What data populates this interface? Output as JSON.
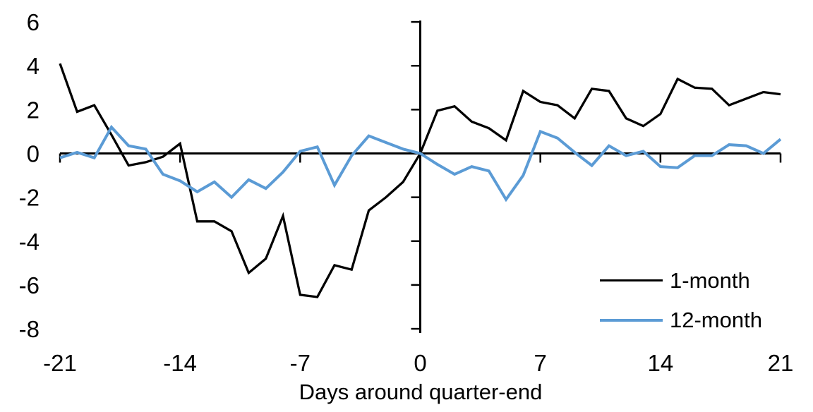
{
  "chart_data": {
    "type": "line",
    "title": "",
    "xlabel": "Days around quarter-end",
    "ylabel": "",
    "x": [
      -21,
      -20,
      -19,
      -18,
      -17,
      -16,
      -15,
      -14,
      -13,
      -12,
      -11,
      -10,
      -9,
      -8,
      -7,
      -6,
      -5,
      -4,
      -3,
      -2,
      -1,
      0,
      1,
      2,
      3,
      4,
      5,
      6,
      7,
      8,
      9,
      10,
      11,
      12,
      13,
      14,
      15,
      16,
      17,
      18,
      19,
      20,
      21
    ],
    "series": [
      {
        "name": "1-month",
        "color": "#000000",
        "values": [
          4.1,
          1.9,
          2.2,
          0.85,
          -0.55,
          -0.4,
          -0.15,
          0.45,
          -3.1,
          -3.1,
          -3.55,
          -5.45,
          -4.8,
          -2.85,
          -6.45,
          -6.55,
          -5.1,
          -5.3,
          -2.6,
          -2.0,
          -1.3,
          0,
          1.95,
          2.15,
          1.45,
          1.15,
          0.6,
          2.85,
          2.35,
          2.2,
          1.6,
          2.95,
          2.85,
          1.6,
          1.25,
          1.8,
          3.4,
          3.0,
          2.95,
          2.2,
          2.5,
          2.8,
          2.7
        ]
      },
      {
        "name": "12-month",
        "color": "#5B9BD5",
        "values": [
          -0.2,
          0.05,
          -0.2,
          1.2,
          0.35,
          0.2,
          -0.95,
          -1.25,
          -1.75,
          -1.3,
          -2.0,
          -1.2,
          -1.6,
          -0.85,
          0.1,
          0.3,
          -1.45,
          -0.1,
          0.8,
          0.5,
          0.2,
          0,
          -0.5,
          -0.95,
          -0.6,
          -0.8,
          -2.1,
          -1.0,
          1.0,
          0.7,
          0.05,
          -0.55,
          0.35,
          -0.1,
          0.1,
          -0.6,
          -0.65,
          -0.1,
          -0.1,
          0.4,
          0.35,
          0.0,
          0.65
        ]
      }
    ],
    "xlim": [
      -21,
      21
    ],
    "ylim": [
      -8,
      6
    ],
    "x_ticks": [
      -21,
      -14,
      -7,
      0,
      7,
      14,
      21
    ],
    "y_ticks": [
      6,
      4,
      2,
      0,
      -2,
      -4,
      -6,
      -8
    ],
    "grid": false,
    "axis_color": "#000000",
    "background": "#FFFFFF",
    "legend_position": "inside-bottom-right"
  }
}
